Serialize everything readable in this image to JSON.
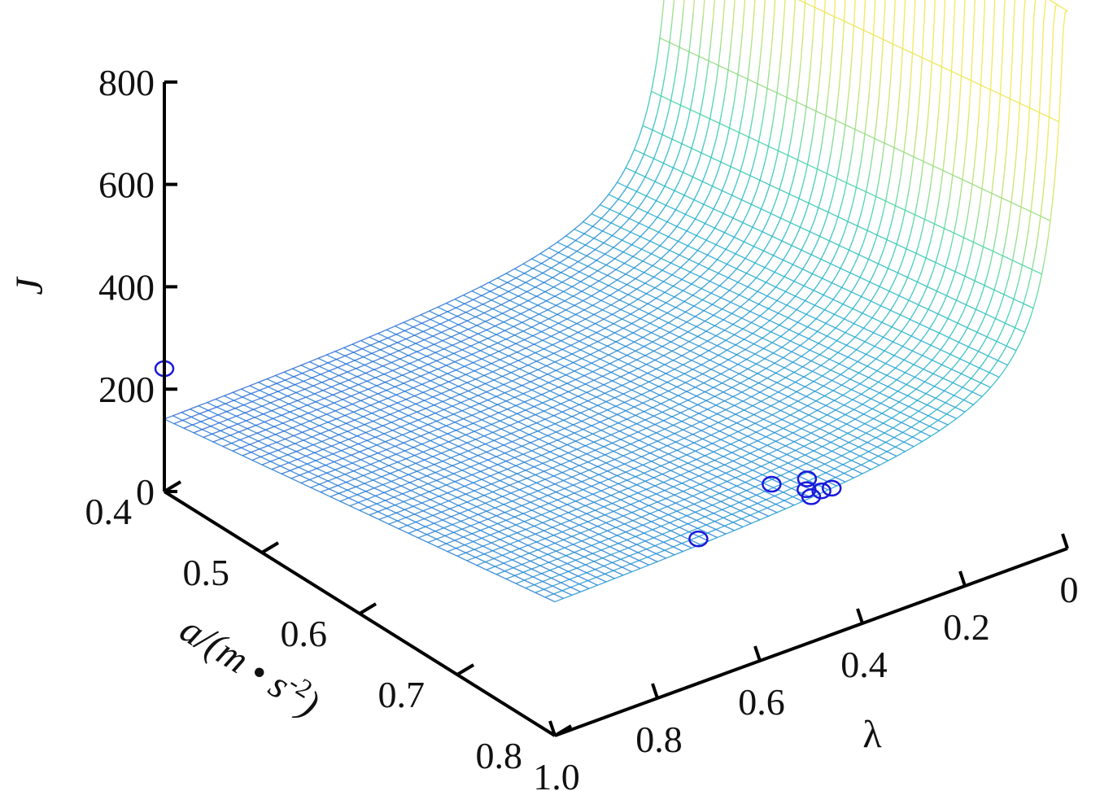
{
  "chart_data": {
    "type": "surface",
    "title": "",
    "xlabel": "λ",
    "ylabel": "a/(m • s",
    "ylabel_sup": "-2",
    "ylabel_close": ")",
    "zlabel": "J",
    "x_range": [
      0,
      1.0
    ],
    "y_range": [
      0.4,
      0.8
    ],
    "z_range": [
      0,
      800
    ],
    "x_ticks": [
      {
        "value": 1.0,
        "label": "1.0"
      },
      {
        "value": 0.8,
        "label": "0.8"
      },
      {
        "value": 0.6,
        "label": "0.6"
      },
      {
        "value": 0.4,
        "label": "0.4"
      },
      {
        "value": 0.2,
        "label": "0.2"
      },
      {
        "value": 0.0,
        "label": "0"
      }
    ],
    "y_ticks": [
      {
        "value": 0.4,
        "label": "0.4"
      },
      {
        "value": 0.5,
        "label": "0.5"
      },
      {
        "value": 0.6,
        "label": "0.6"
      },
      {
        "value": 0.7,
        "label": "0.7"
      },
      {
        "value": 0.8,
        "label": "0.8"
      }
    ],
    "z_ticks": [
      {
        "value": 0,
        "label": "0"
      },
      {
        "value": 200,
        "label": "200"
      },
      {
        "value": 400,
        "label": "400"
      },
      {
        "value": 600,
        "label": "600"
      },
      {
        "value": 800,
        "label": "800"
      }
    ],
    "surface_model": {
      "form": "J = A / (lambda + c) + B * a",
      "A": 22,
      "c": 0.02,
      "B": 300,
      "z_clip": 1050
    },
    "grid_resolution": {
      "lambda_steps": 60,
      "a_steps": 40
    },
    "colormap": [
      "#3b2fd6",
      "#2f6fd8",
      "#22b0cf",
      "#3cd1a8",
      "#b8e06a",
      "#f2e64b"
    ],
    "points": [
      {
        "lambda": 1.0,
        "a": 0.4,
        "J": 240
      },
      {
        "lambda": 0.72,
        "a": 0.8,
        "J": 282
      },
      {
        "lambda": 0.5,
        "a": 0.8,
        "J": 284
      },
      {
        "lambda": 0.49,
        "a": 0.79,
        "J": 282
      },
      {
        "lambda": 0.48,
        "a": 0.8,
        "J": 288
      },
      {
        "lambda": 0.47,
        "a": 0.78,
        "J": 284
      },
      {
        "lambda": 0.46,
        "a": 0.8,
        "J": 286
      },
      {
        "lambda": 0.52,
        "a": 0.77,
        "J": 280
      }
    ],
    "point_color": "#1a1adb",
    "grid": false
  }
}
